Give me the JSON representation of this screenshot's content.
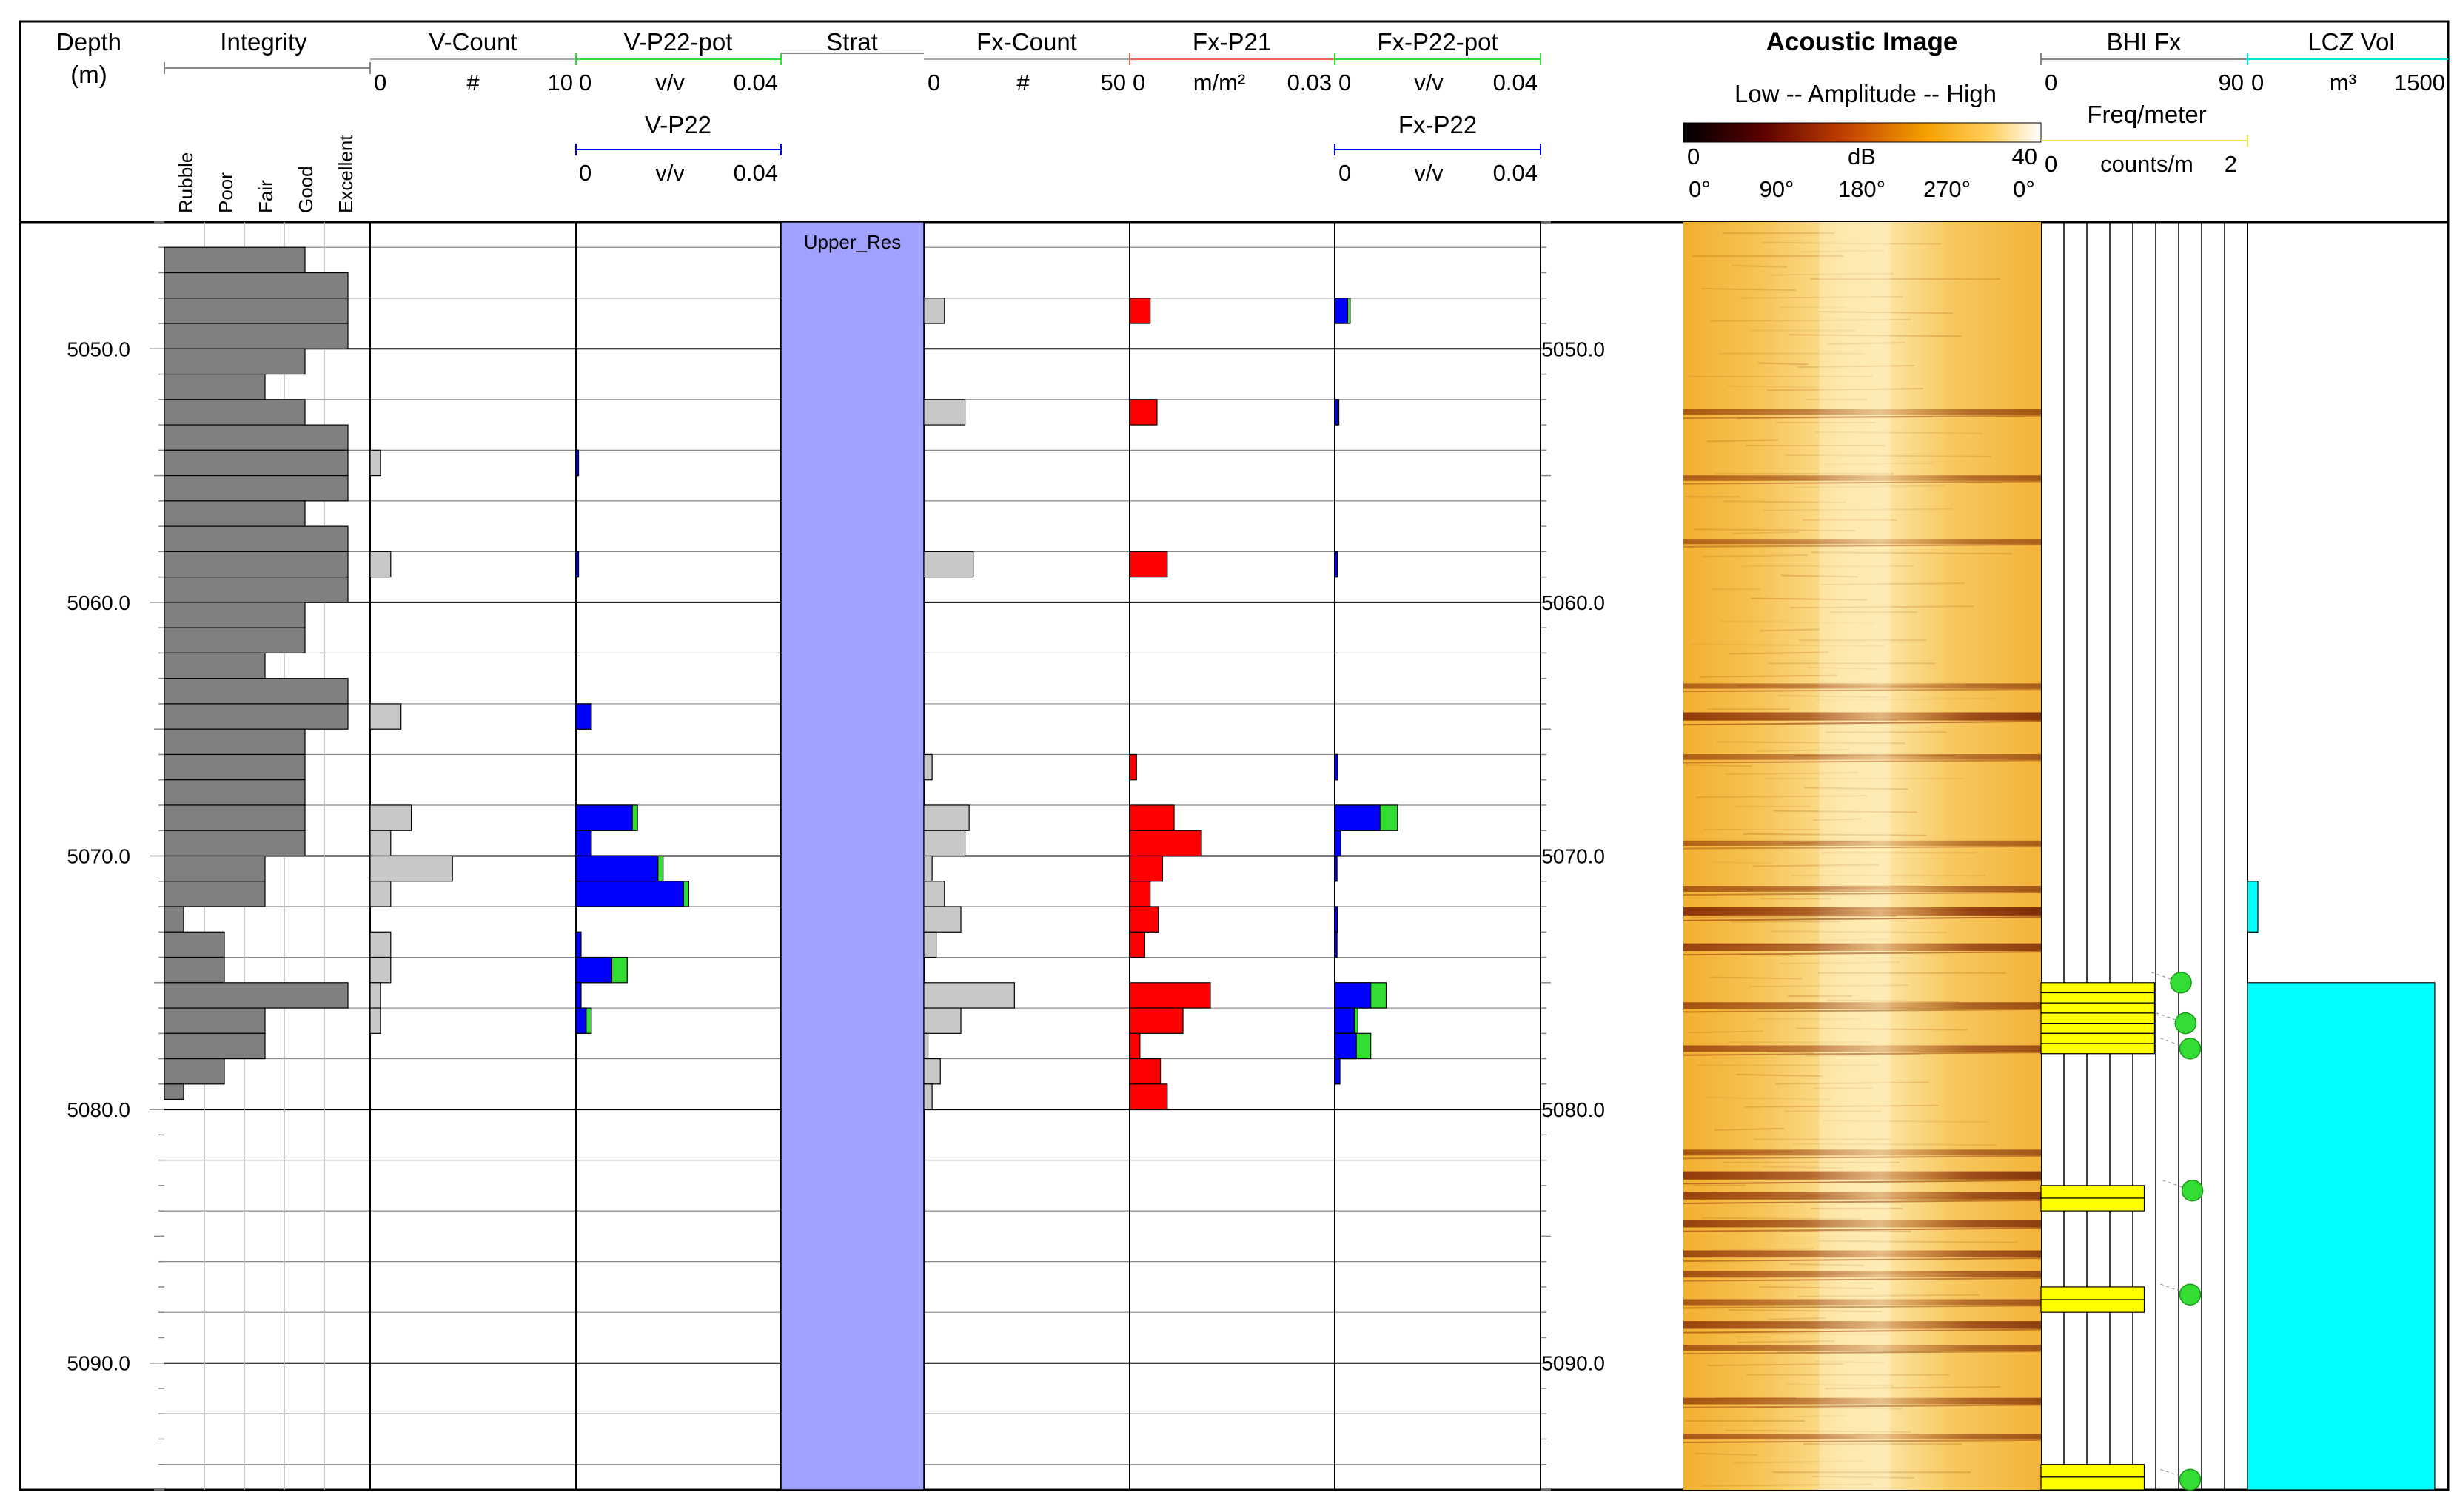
{
  "chart_data": {
    "type": "well-log",
    "depth_range": [
      5045.0,
      5095.0
    ],
    "depth_labels": [
      "5050.0",
      "5060.0",
      "5070.0",
      "5080.0",
      "5090.0"
    ],
    "depth_unit_title": "Depth",
    "depth_unit": "(m)",
    "tracks": {
      "integrity": {
        "title": "Integrity",
        "classes": [
          "Rubble",
          "Poor",
          "Fair",
          "Good",
          "Excellent"
        ],
        "color": "#808080",
        "intervals": [
          [
            5046.0,
            5047.0,
            4
          ],
          [
            5047.0,
            5048.0,
            5
          ],
          [
            5048.0,
            5049.0,
            5
          ],
          [
            5049.0,
            5050.0,
            5
          ],
          [
            5050.0,
            5051.0,
            4
          ],
          [
            5051.0,
            5052.0,
            3
          ],
          [
            5052.0,
            5053.0,
            4
          ],
          [
            5053.0,
            5054.0,
            5
          ],
          [
            5054.0,
            5055.0,
            5
          ],
          [
            5055.0,
            5056.0,
            5
          ],
          [
            5056.0,
            5057.0,
            4
          ],
          [
            5057.0,
            5058.0,
            5
          ],
          [
            5058.0,
            5059.0,
            5
          ],
          [
            5059.0,
            5060.0,
            5
          ],
          [
            5060.0,
            5061.0,
            4
          ],
          [
            5061.0,
            5062.0,
            4
          ],
          [
            5062.0,
            5063.0,
            3
          ],
          [
            5063.0,
            5064.0,
            5
          ],
          [
            5064.0,
            5065.0,
            5
          ],
          [
            5065.0,
            5066.0,
            4
          ],
          [
            5066.0,
            5067.0,
            4
          ],
          [
            5067.0,
            5068.0,
            4
          ],
          [
            5068.0,
            5069.0,
            4
          ],
          [
            5069.0,
            5070.0,
            4
          ],
          [
            5070.0,
            5071.0,
            3
          ],
          [
            5071.0,
            5072.0,
            3
          ],
          [
            5072.0,
            5073.0,
            1
          ],
          [
            5073.0,
            5074.0,
            2
          ],
          [
            5074.0,
            5075.0,
            2
          ],
          [
            5075.0,
            5076.0,
            5
          ],
          [
            5076.0,
            5077.0,
            3
          ],
          [
            5077.0,
            5078.0,
            3
          ],
          [
            5078.0,
            5079.0,
            2
          ],
          [
            5079.0,
            5079.6,
            1
          ]
        ]
      },
      "v_count": {
        "title": "V-Count",
        "scale": [
          "0",
          "#",
          "10"
        ],
        "range": [
          0,
          10
        ],
        "color": "#c8c8c8",
        "bars": [
          [
            5054.0,
            5055.0,
            0.5
          ],
          [
            5058.0,
            5059.0,
            1.0
          ],
          [
            5064.0,
            5065.0,
            1.5
          ],
          [
            5068.0,
            5069.0,
            2.0
          ],
          [
            5069.0,
            5070.0,
            1.0
          ],
          [
            5070.0,
            5071.0,
            4.0
          ],
          [
            5071.0,
            5072.0,
            1.0
          ],
          [
            5073.0,
            5074.0,
            1.0
          ],
          [
            5074.0,
            5075.0,
            1.0
          ],
          [
            5075.0,
            5076.0,
            0.5
          ],
          [
            5076.0,
            5077.0,
            0.5
          ]
        ]
      },
      "v_p22": {
        "title_pot": "V-P22-pot",
        "title": "V-P22",
        "scale_pot": [
          "0",
          "v/v",
          "0.04"
        ],
        "scale": [
          "0",
          "v/v",
          "0.04"
        ],
        "range": [
          0,
          0.04
        ],
        "color": "#0000ff",
        "pot_color": "#33dd33",
        "bars": [
          [
            5054.0,
            5055.0,
            0.0005,
            0.0005
          ],
          [
            5058.0,
            5059.0,
            0.0005,
            0.0005
          ],
          [
            5064.0,
            5065.0,
            0.003,
            0.003
          ],
          [
            5068.0,
            5069.0,
            0.011,
            0.012
          ],
          [
            5069.0,
            5070.0,
            0.003,
            0.003
          ],
          [
            5070.0,
            5071.0,
            0.016,
            0.017
          ],
          [
            5071.0,
            5072.0,
            0.021,
            0.022
          ],
          [
            5073.0,
            5074.0,
            0.001,
            0.001
          ],
          [
            5074.0,
            5075.0,
            0.007,
            0.01
          ],
          [
            5075.0,
            5076.0,
            0.001,
            0.001
          ],
          [
            5076.0,
            5077.0,
            0.002,
            0.003
          ]
        ]
      },
      "strat": {
        "title": "Strat",
        "zones": [
          {
            "name": "Upper_Res",
            "top": 5045.0,
            "base": 5095.0,
            "color": "#a0a0ff"
          }
        ]
      },
      "fx_count": {
        "title": "Fx-Count",
        "scale": [
          "0",
          "#",
          "50"
        ],
        "range": [
          0,
          50
        ],
        "color": "#c8c8c8",
        "bars": [
          [
            5048.0,
            5049.0,
            5
          ],
          [
            5052.0,
            5053.0,
            10
          ],
          [
            5058.0,
            5059.0,
            12
          ],
          [
            5066.0,
            5067.0,
            2
          ],
          [
            5068.0,
            5069.0,
            11
          ],
          [
            5069.0,
            5070.0,
            10
          ],
          [
            5070.0,
            5071.0,
            2
          ],
          [
            5071.0,
            5072.0,
            5
          ],
          [
            5072.0,
            5073.0,
            9
          ],
          [
            5073.0,
            5074.0,
            3
          ],
          [
            5075.0,
            5076.0,
            22
          ],
          [
            5076.0,
            5077.0,
            9
          ],
          [
            5077.0,
            5078.0,
            1
          ],
          [
            5078.0,
            5079.0,
            4
          ],
          [
            5079.0,
            5080.0,
            2
          ]
        ]
      },
      "fx_p21": {
        "title": "Fx-P21",
        "scale": [
          "0",
          "m/m²",
          "0.03"
        ],
        "range": [
          0,
          0.03
        ],
        "color": "#ff0000",
        "bars": [
          [
            5048.0,
            5049.0,
            0.003
          ],
          [
            5052.0,
            5053.0,
            0.004
          ],
          [
            5058.0,
            5059.0,
            0.0055
          ],
          [
            5066.0,
            5067.0,
            0.001
          ],
          [
            5068.0,
            5069.0,
            0.0065
          ],
          [
            5069.0,
            5070.0,
            0.0105
          ],
          [
            5070.0,
            5071.0,
            0.0048
          ],
          [
            5071.0,
            5072.0,
            0.003
          ],
          [
            5072.0,
            5073.0,
            0.0042
          ],
          [
            5073.0,
            5074.0,
            0.0022
          ],
          [
            5075.0,
            5076.0,
            0.0118
          ],
          [
            5076.0,
            5077.0,
            0.0078
          ],
          [
            5077.0,
            5078.0,
            0.0015
          ],
          [
            5078.0,
            5079.0,
            0.0045
          ],
          [
            5079.0,
            5080.0,
            0.0055
          ]
        ]
      },
      "fx_p22": {
        "title_pot": "Fx-P22-pot",
        "title": "Fx-P22",
        "scale_pot": [
          "0",
          "v/v",
          "0.04"
        ],
        "scale": [
          "0",
          "v/v",
          "0.04"
        ],
        "range": [
          0,
          0.04
        ],
        "color": "#0000ff",
        "pot_color": "#33dd33",
        "bars": [
          [
            5048.0,
            5049.0,
            0.0025,
            0.003
          ],
          [
            5052.0,
            5053.0,
            0.0006,
            0.0008
          ],
          [
            5058.0,
            5059.0,
            0.0005,
            0.0005
          ],
          [
            5066.0,
            5067.0,
            0.0006,
            0.0006
          ],
          [
            5068.0,
            5069.0,
            0.0088,
            0.0122
          ],
          [
            5069.0,
            5070.0,
            0.0012,
            0.0012
          ],
          [
            5070.0,
            5071.0,
            0.0004,
            0.0004
          ],
          [
            5072.0,
            5073.0,
            0.0005,
            0.0005
          ],
          [
            5073.0,
            5074.0,
            0.0004,
            0.0004
          ],
          [
            5075.0,
            5076.0,
            0.007,
            0.01
          ],
          [
            5076.0,
            5077.0,
            0.0038,
            0.0045
          ],
          [
            5077.0,
            5078.0,
            0.0042,
            0.007
          ],
          [
            5078.0,
            5079.0,
            0.001,
            0.001
          ]
        ]
      },
      "acoustic_image": {
        "title": "Acoustic Image",
        "amplitude_label": "Low -- Amplitude --  High",
        "db_min": "0",
        "db_label": "dB",
        "db_max": "40",
        "azimuths": [
          "0°",
          "90°",
          "180°",
          "270°",
          "0°"
        ],
        "dark_bands": [
          {
            "depth": 5052.5,
            "strength": 0.5
          },
          {
            "depth": 5055.1,
            "strength": 0.45
          },
          {
            "depth": 5057.6,
            "strength": 0.4
          },
          {
            "depth": 5063.3,
            "strength": 0.4
          },
          {
            "depth": 5064.5,
            "strength": 0.9
          },
          {
            "depth": 5066.1,
            "strength": 0.45
          },
          {
            "depth": 5069.5,
            "strength": 0.4
          },
          {
            "depth": 5071.3,
            "strength": 0.5
          },
          {
            "depth": 5072.2,
            "strength": 1.0
          },
          {
            "depth": 5073.6,
            "strength": 0.8
          },
          {
            "depth": 5075.9,
            "strength": 0.6
          },
          {
            "depth": 5077.6,
            "strength": 0.6
          },
          {
            "depth": 5081.7,
            "strength": 0.5
          },
          {
            "depth": 5082.6,
            "strength": 0.9
          },
          {
            "depth": 5083.4,
            "strength": 0.8
          },
          {
            "depth": 5084.5,
            "strength": 0.8
          },
          {
            "depth": 5085.7,
            "strength": 0.7
          },
          {
            "depth": 5086.5,
            "strength": 0.6
          },
          {
            "depth": 5087.6,
            "strength": 0.5
          },
          {
            "depth": 5088.5,
            "strength": 0.8
          },
          {
            "depth": 5089.4,
            "strength": 0.5
          },
          {
            "depth": 5091.5,
            "strength": 0.6
          },
          {
            "depth": 5092.9,
            "strength": 0.5
          }
        ]
      },
      "bhi_fx": {
        "title": "BHI Fx",
        "scale": [
          "0",
          "90"
        ],
        "range": [
          0,
          90
        ],
        "freq_title": "Freq/meter",
        "freq_scale": [
          "0",
          "counts/m",
          "2"
        ],
        "freq_range": [
          0,
          2
        ],
        "freq_color": "#ffff00",
        "dip_color": "#33dd33",
        "freq_bars": [
          [
            5075.0,
            5075.4,
            1.1
          ],
          [
            5075.4,
            5075.8,
            1.1
          ],
          [
            5075.8,
            5076.2,
            1.1
          ],
          [
            5076.2,
            5076.6,
            1.1
          ],
          [
            5076.6,
            5077.0,
            1.1
          ],
          [
            5077.0,
            5077.4,
            1.1
          ],
          [
            5077.4,
            5077.8,
            1.1
          ],
          [
            5083.0,
            5083.5,
            1.0
          ],
          [
            5083.5,
            5084.0,
            1.0
          ],
          [
            5087.0,
            5087.5,
            1.0
          ],
          [
            5087.5,
            5088.0,
            1.0
          ],
          [
            5094.0,
            5094.5,
            1.0
          ],
          [
            5094.5,
            5095.0,
            1.0
          ]
        ],
        "dips": [
          [
            5075.0,
            61
          ],
          [
            5076.6,
            63
          ],
          [
            5077.6,
            65
          ],
          [
            5083.2,
            66
          ],
          [
            5087.3,
            65
          ],
          [
            5094.6,
            65
          ]
        ]
      },
      "lcz_vol": {
        "title": "LCZ Vol",
        "scale": [
          "0",
          "m³",
          "1500"
        ],
        "range": [
          0,
          1500
        ],
        "color": "#00ffff",
        "bars": [
          [
            5071.0,
            5073.0,
            60
          ],
          [
            5075.0,
            5095.0,
            1400
          ]
        ]
      }
    }
  }
}
